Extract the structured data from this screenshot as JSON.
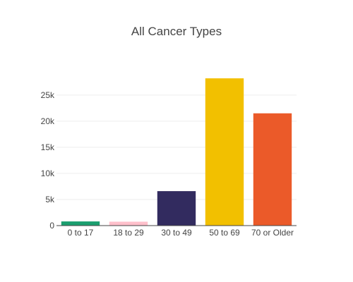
{
  "chart_data": {
    "type": "bar",
    "title": "All Cancer Types",
    "xlabel": "",
    "ylabel": "",
    "categories": [
      "0 to 17",
      "18 to 29",
      "30 to 49",
      "50 to 69",
      "70 or Older"
    ],
    "values": [
      800,
      750,
      6600,
      28200,
      21500
    ],
    "colors": [
      "#1b9e6f",
      "#ffc0cb",
      "#322b5f",
      "#f2c000",
      "#eb5a29"
    ],
    "ylim": [
      0,
      29700
    ],
    "yticks": [
      0,
      5000,
      10000,
      15000,
      20000,
      25000
    ],
    "ytick_labels": [
      "0",
      "5k",
      "10k",
      "15k",
      "20k",
      "25k"
    ],
    "grid": true,
    "legend": "none"
  }
}
